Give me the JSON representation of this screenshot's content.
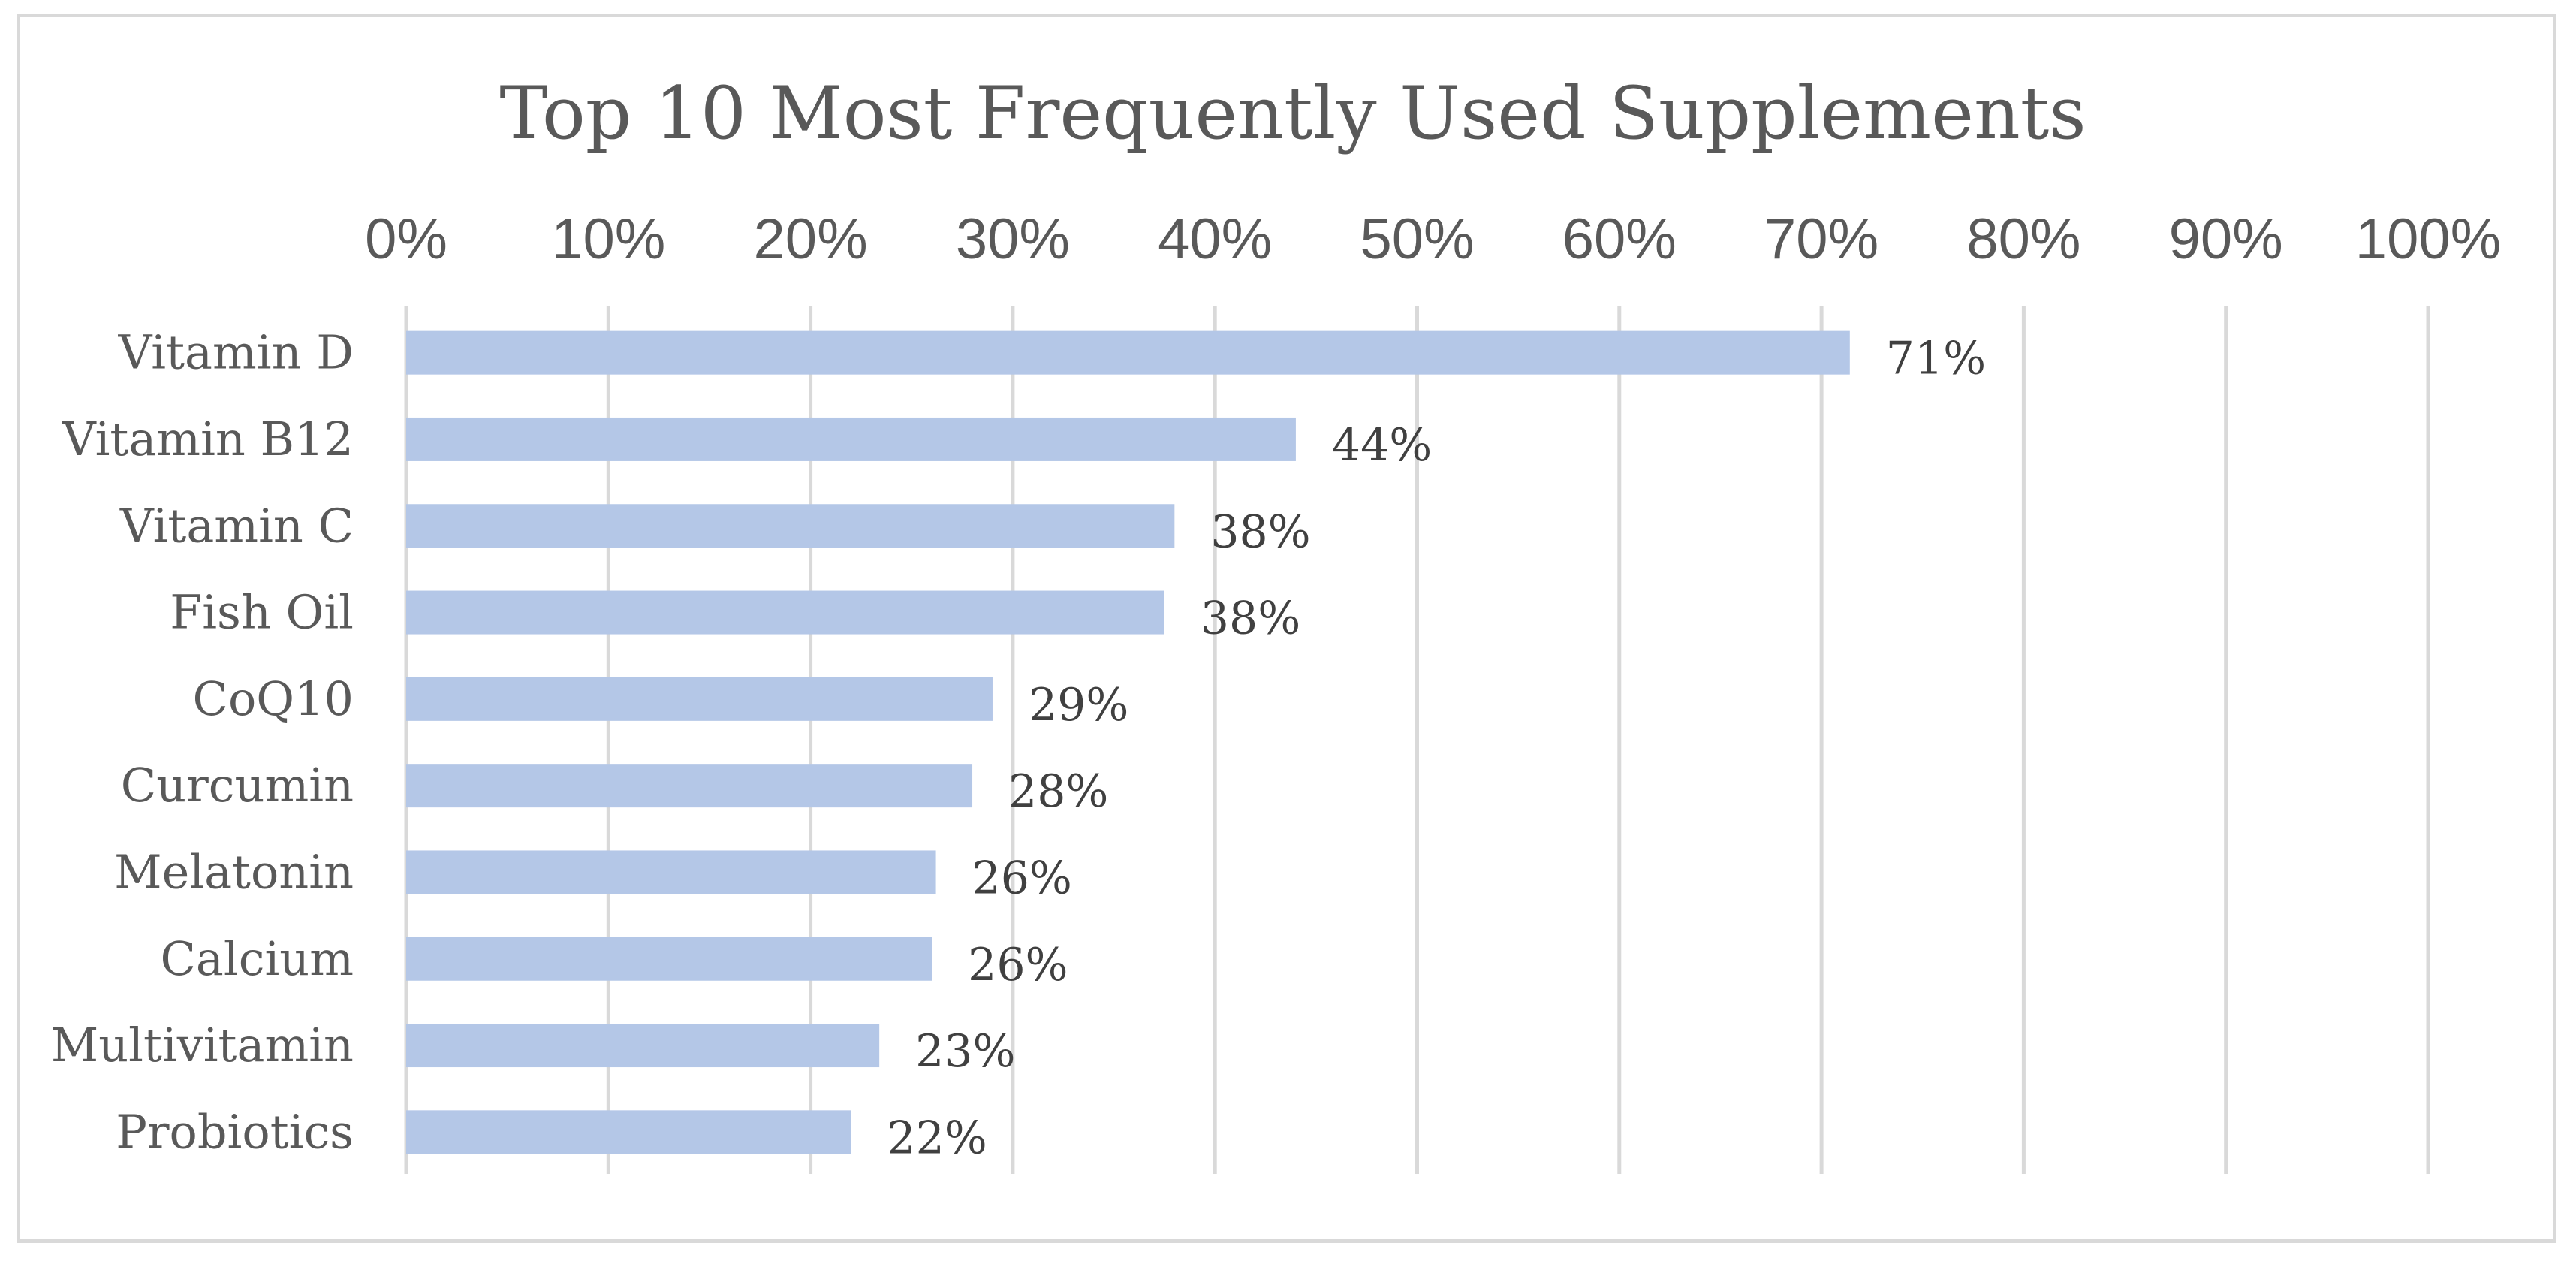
{
  "chart_data": {
    "type": "bar",
    "orientation": "horizontal",
    "title": "Top 10 Most Frequently Used Supplements",
    "xlabel": "",
    "ylabel": "",
    "categories": [
      "Vitamin D",
      "Vitamin B12",
      "Vitamin C",
      "Fish Oil",
      "CoQ10",
      "Curcumin",
      "Melatonin",
      "Calcium",
      "Multivitamin",
      "Probiotics"
    ],
    "values": [
      71.4,
      44.0,
      38.0,
      37.5,
      29.0,
      28.0,
      26.2,
      26.0,
      23.4,
      22.0
    ],
    "data_labels": [
      "71%",
      "44%",
      "38%",
      "38%",
      "29%",
      "28%",
      "26%",
      "26%",
      "23%",
      "22%"
    ],
    "xlim": [
      0,
      100
    ],
    "ticks": [
      0,
      10,
      20,
      30,
      40,
      50,
      60,
      70,
      80,
      90,
      100
    ],
    "tick_labels": [
      "0%",
      "10%",
      "20%",
      "30%",
      "40%",
      "50%",
      "60%",
      "70%",
      "80%",
      "90%",
      "100%"
    ],
    "axis_position": "top",
    "grid": true,
    "bar_color": "#b4c7e7",
    "grid_color": "#d9d9d9"
  }
}
